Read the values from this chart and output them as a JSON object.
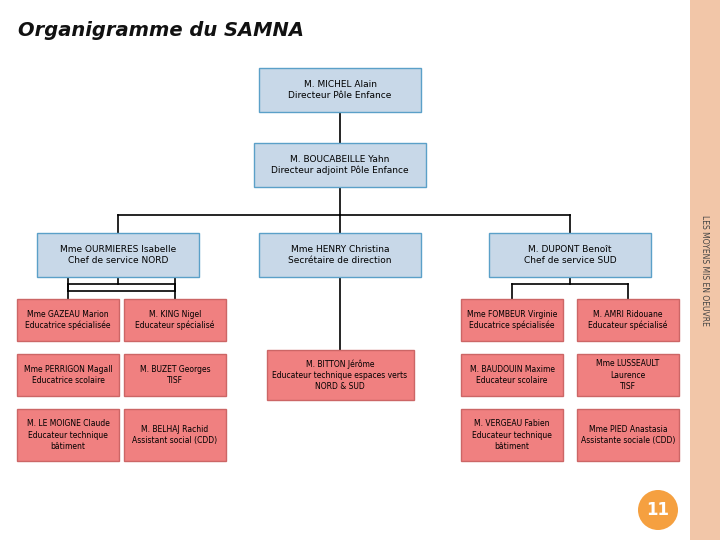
{
  "title": "Organigramme du SAMNA",
  "sidebar_text": "LES MOYENS MIS EN OEUVRE",
  "bg_color": "#ffffff",
  "sidebar_color": "#f2c6a8",
  "box_light_color": "#c8d8e8",
  "box_light_border": "#5ba0c8",
  "box_salmon_color": "#f08080",
  "box_salmon_border": "#cc6666",
  "line_color": "#000000",
  "text_color": "#000000",
  "top_text": "M. MICHEL Alain\nDirecteur Pôle Enfance",
  "level2_text": "M. BOUCABEILLE Yahn\nDirecteur adjoint Pôle Enfance",
  "left_text": "Mme OURMIERES Isabelle\nChef de service NORD",
  "center_text": "Mme HENRY Christina\nSecrétaire de direction",
  "right_text": "M. DUPONT Benoît\nChef de service SUD",
  "left_children": [
    [
      "Mme GAZEAU Marion\nEducatrice spécialisée",
      "M. KING Nigel\nEducateur spécialisé"
    ],
    [
      "Mme PERRIGON Magall\nEducatrice scolaire",
      "M. BUZET Georges\nTISF"
    ],
    [
      "M. LE MOIGNE Claude\nEducateur technique\nbâtiment",
      "M. BELHAJ Rachid\nAssistant social (CDD)"
    ]
  ],
  "center_child": "M. BITTON Jérôme\nEducateur technique espaces verts\nNORD & SUD",
  "right_children": [
    [
      "Mme FOMBEUR Virginie\nEducatrice spécialisée",
      "M. AMRI Ridouane\nEducateur spécialisé"
    ],
    [
      "M. BAUDOUIN Maxime\nEducateur scolaire",
      "Mme LUSSEAULT\nLaurence\nTISF"
    ],
    [
      "M. VERGEAU Fabien\nEducateur technique\nbâtiment",
      "Mme PIED Anastasia\nAssistante sociale (CDD)"
    ]
  ],
  "page_number": "11"
}
